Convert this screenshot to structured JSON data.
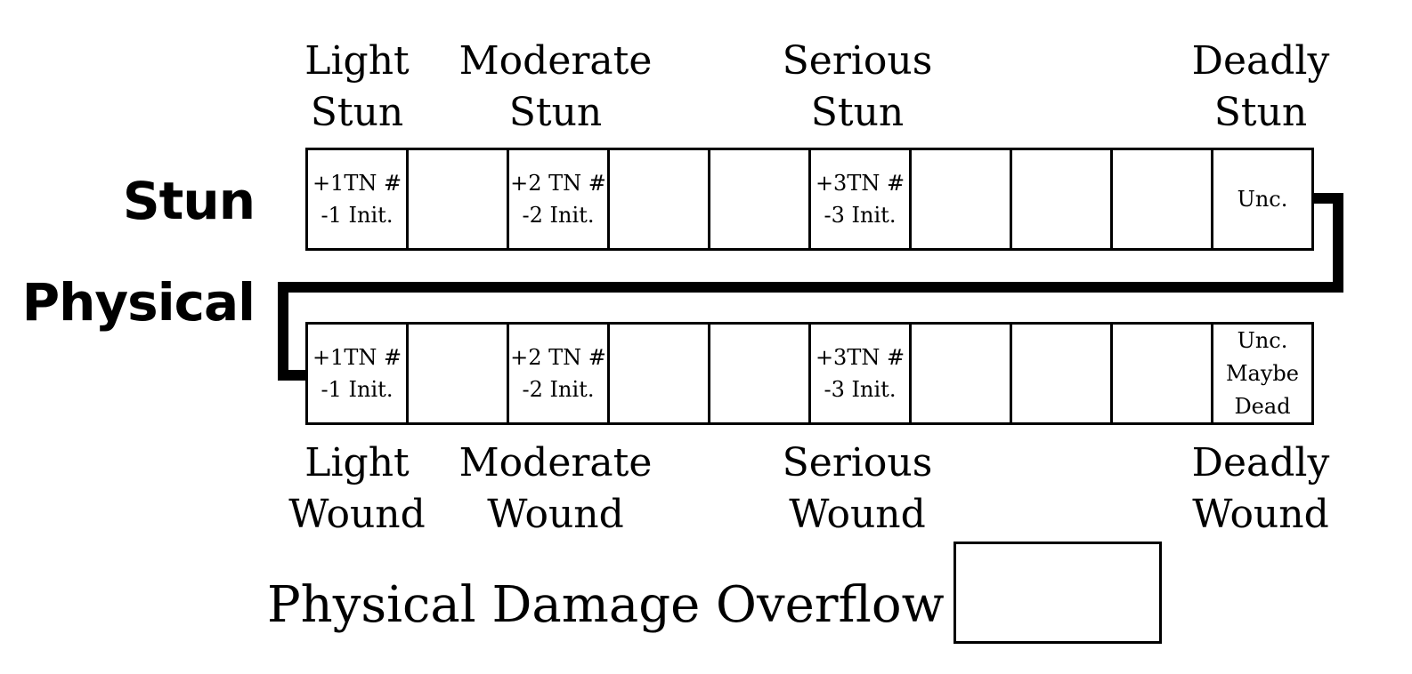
{
  "stun": {
    "title": "Stun",
    "levels": [
      {
        "line1": "Light",
        "line2": "Stun"
      },
      {
        "line1": "Moderate",
        "line2": "Stun"
      },
      {
        "line1": "Serious",
        "line2": "Stun"
      },
      {
        "line1": "Deadly",
        "line2": "Stun"
      }
    ],
    "boxes": [
      [
        "+1TN #",
        "-1 Init."
      ],
      [],
      [
        "+2 TN #",
        "-2 Init."
      ],
      [],
      [],
      [
        "+3TN #",
        "-3 Init."
      ],
      [],
      [],
      [],
      [
        "Unc."
      ]
    ]
  },
  "physical": {
    "title": "Physical",
    "levels": [
      {
        "line1": "Light",
        "line2": "Wound"
      },
      {
        "line1": "Moderate",
        "line2": "Wound"
      },
      {
        "line1": "Serious",
        "line2": "Wound"
      },
      {
        "line1": "Deadly",
        "line2": "Wound"
      }
    ],
    "boxes": [
      [
        "+1TN #",
        "-1 Init."
      ],
      [],
      [
        "+2 TN #",
        "-2 Init."
      ],
      [],
      [],
      [
        "+3TN #",
        "-3 Init."
      ],
      [],
      [],
      [],
      [
        "Unc.",
        "Maybe",
        "Dead"
      ]
    ]
  },
  "overflow": {
    "label": "Physical Damage Overflow",
    "value": ""
  }
}
